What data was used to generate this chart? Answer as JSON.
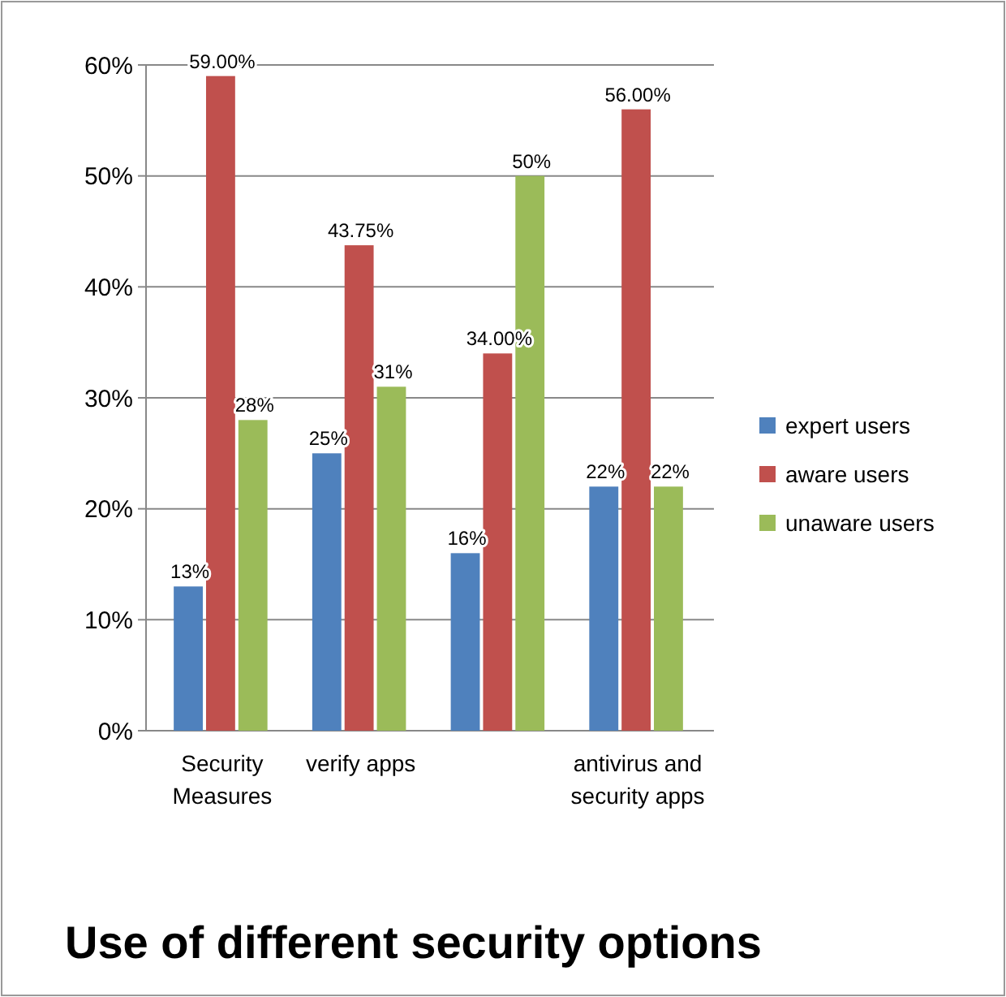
{
  "chart_data": {
    "type": "bar",
    "title": "Use of different security options",
    "categories": [
      "Security Measures",
      "verify apps",
      null,
      "antivirus and security apps"
    ],
    "series": [
      {
        "name": "expert users",
        "color": "#4f81bd",
        "values": [
          13,
          25,
          16,
          22
        ],
        "value_labels": [
          "13%",
          "25%",
          "16%",
          "22%"
        ]
      },
      {
        "name": "aware users",
        "color": "#c0504d",
        "values": [
          59,
          43.75,
          34,
          56
        ],
        "value_labels": [
          "59.00%",
          "43.75%",
          "34.00%",
          "56.00%"
        ]
      },
      {
        "name": "unaware users",
        "color": "#9bbb59",
        "values": [
          28,
          31,
          50,
          22
        ],
        "value_labels": [
          "28%",
          "31%",
          "50%",
          "22%"
        ]
      }
    ],
    "ylim": [
      0,
      60
    ],
    "yticks": [
      {
        "value": 0,
        "label": "0%"
      },
      {
        "value": 10,
        "label": "10%"
      },
      {
        "value": 20,
        "label": "20%"
      },
      {
        "value": 30,
        "label": "30%"
      },
      {
        "value": 40,
        "label": "40%"
      },
      {
        "value": 50,
        "label": "50%"
      },
      {
        "value": 60,
        "label": "60%"
      }
    ],
    "grid": "y",
    "legend": "right"
  }
}
